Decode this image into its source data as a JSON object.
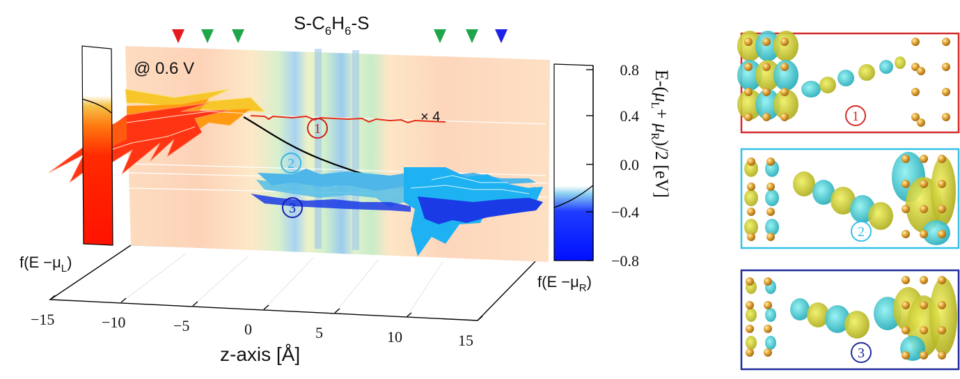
{
  "title": {
    "prefix": "S-C",
    "sub1": "6",
    "mid": "H",
    "sub2": "6",
    "suffix": "-S"
  },
  "bias_label": "@ 0.6 V",
  "scale_label": "× 4",
  "markers": [
    {
      "color": "#e41a1c"
    },
    {
      "color": "#1fa64a"
    },
    {
      "color": "#1fa64a"
    },
    {
      "color": "#1fa64a"
    },
    {
      "color": "#1fa64a"
    },
    {
      "color": "#1f22e6"
    }
  ],
  "z_axis": {
    "label": "z-axis [Å]",
    "ticks": [
      "−15",
      "−10",
      "−5",
      "0",
      "5",
      "10",
      "15"
    ],
    "range": [
      -15,
      15
    ]
  },
  "energy_axis": {
    "label": "E-(μL+ μR)/2 [eV]",
    "ticks": [
      "0.8",
      "0.4",
      "0.0",
      "−0.4",
      "−0.8"
    ],
    "range": [
      -0.8,
      0.8
    ]
  },
  "fermi_left": {
    "label": "f(E − μL)",
    "label_main": "f(E −μ",
    "label_sub": "L",
    "label_close": ")",
    "fill_color": "#ff1a00"
  },
  "fermi_right": {
    "label": "f(E − μR)",
    "label_main": "f(E −μ",
    "label_sub": "R",
    "label_close": ")",
    "fill_color": "#0010ff"
  },
  "states": [
    {
      "label": "1",
      "color": "#cc1f1f",
      "energy": 0.33
    },
    {
      "label": "2",
      "color": "#2fb8e0",
      "energy": 0.0
    },
    {
      "label": "3",
      "color": "#1a1ab0",
      "energy": -0.36
    }
  ],
  "orbital_panels": [
    {
      "label": "1",
      "border_color": "#d42a2a"
    },
    {
      "label": "2",
      "border_color": "#35c0e6"
    },
    {
      "label": "3",
      "border_color": "#1f2a9a"
    }
  ],
  "colors": {
    "backdrop": "#fde1c4",
    "stripe_blue": "#9cc6ee",
    "stripe_green": "#c9edc4",
    "iso_yellow": "#c8cc1a",
    "iso_cyan": "#2fcdcd",
    "atom_gold": "#e0a030"
  }
}
